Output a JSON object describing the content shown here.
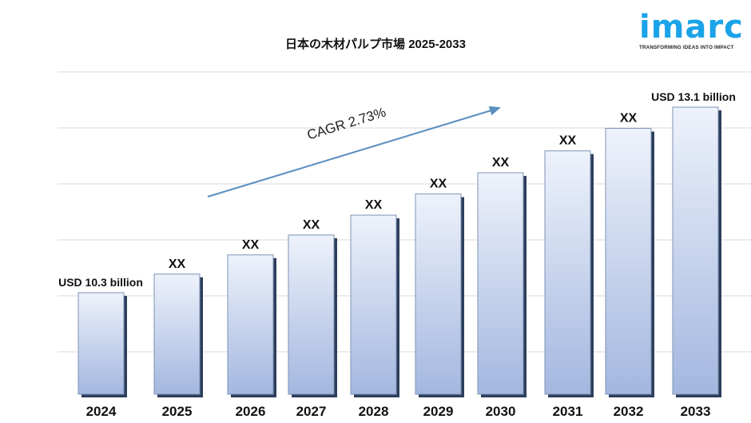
{
  "logo": {
    "word": "imarc",
    "tagline": "TRANSFORMING IDEAS INTO IMPACT",
    "color": "#1aa3e8"
  },
  "chart_data": {
    "type": "bar",
    "title": "日本の木材パルプ市場 2025-2033",
    "categories": [
      "2024",
      "2025",
      "2026",
      "2027",
      "2028",
      "2029",
      "2030",
      "2031",
      "2032",
      "2033"
    ],
    "values": [
      10.3,
      10.58,
      10.87,
      11.17,
      11.47,
      11.79,
      12.11,
      12.44,
      12.78,
      13.1
    ],
    "data_labels": [
      "USD 10.3 billion",
      "XX",
      "XX",
      "XX",
      "XX",
      "XX",
      "XX",
      "XX",
      "XX",
      "USD 13.1 billion"
    ],
    "annotation": "CAGR 2.73%",
    "xlabel": "",
    "ylabel": "",
    "grid": true,
    "legend": "none",
    "colors": {
      "bar_top": "#eef2fb",
      "bar_bottom": "#a3b7df",
      "bar_shadow": "#2c3e5c",
      "arrow": "#5b8fc0",
      "grid": "#d9d9d9"
    }
  }
}
